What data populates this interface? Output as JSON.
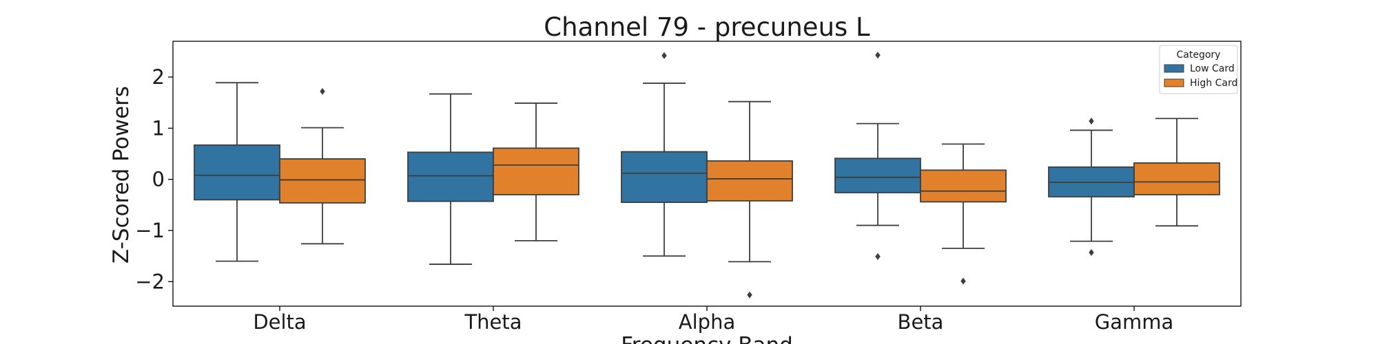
{
  "chart_data": {
    "type": "box",
    "title": "Channel 79 - precuneus L",
    "xlabel": "Frequency Band",
    "ylabel": "Z-Scored Powers",
    "categories": [
      "Delta",
      "Theta",
      "Alpha",
      "Beta",
      "Gamma"
    ],
    "ylim": [
      -2.48,
      2.7
    ],
    "yticks": [
      -2,
      -1,
      0,
      1,
      2
    ],
    "ytick_labels": [
      "−2",
      "−1",
      "0",
      "1",
      "2"
    ],
    "grid": false,
    "legend": {
      "title": "Category",
      "position": "top-right"
    },
    "series": [
      {
        "name": "Low Card",
        "color": "#3274a1",
        "boxes": [
          {
            "whisker_low": -1.6,
            "q1": -0.4,
            "median": 0.08,
            "q3": 0.67,
            "whisker_high": 1.89,
            "outliers": []
          },
          {
            "whisker_low": -1.66,
            "q1": -0.43,
            "median": 0.07,
            "q3": 0.53,
            "whisker_high": 1.67,
            "outliers": []
          },
          {
            "whisker_low": -1.5,
            "q1": -0.45,
            "median": 0.12,
            "q3": 0.54,
            "whisker_high": 1.88,
            "outliers": [
              2.42
            ]
          },
          {
            "whisker_low": -0.9,
            "q1": -0.26,
            "median": 0.04,
            "q3": 0.41,
            "whisker_high": 1.09,
            "outliers": [
              2.43,
              -1.51
            ]
          },
          {
            "whisker_low": -1.21,
            "q1": -0.34,
            "median": -0.06,
            "q3": 0.24,
            "whisker_high": 0.96,
            "outliers": [
              1.14,
              -1.43
            ]
          }
        ]
      },
      {
        "name": "High Card",
        "color": "#e1812c",
        "boxes": [
          {
            "whisker_low": -1.26,
            "q1": -0.46,
            "median": -0.01,
            "q3": 0.4,
            "whisker_high": 1.01,
            "outliers": [
              1.72
            ]
          },
          {
            "whisker_low": -1.2,
            "q1": -0.3,
            "median": 0.28,
            "q3": 0.61,
            "whisker_high": 1.49,
            "outliers": []
          },
          {
            "whisker_low": -1.61,
            "q1": -0.42,
            "median": 0.01,
            "q3": 0.36,
            "whisker_high": 1.52,
            "outliers": [
              -2.26
            ]
          },
          {
            "whisker_low": -1.35,
            "q1": -0.44,
            "median": -0.23,
            "q3": 0.18,
            "whisker_high": 0.69,
            "outliers": [
              -1.99
            ]
          },
          {
            "whisker_low": -0.91,
            "q1": -0.3,
            "median": -0.05,
            "q3": 0.32,
            "whisker_high": 1.19,
            "outliers": []
          }
        ]
      }
    ]
  }
}
